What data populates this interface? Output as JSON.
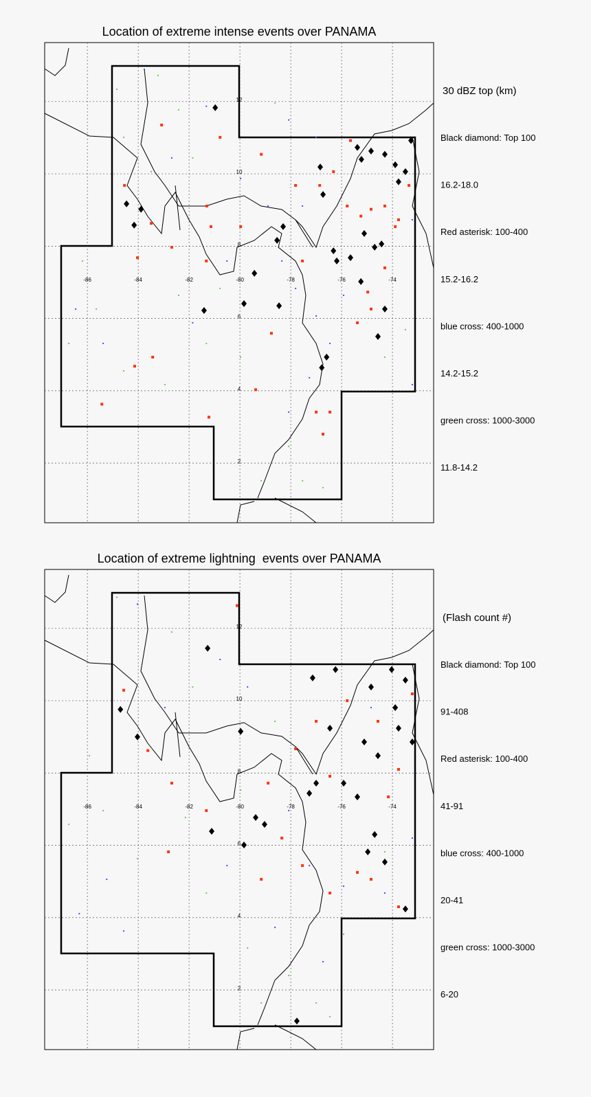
{
  "maps": [
    {
      "title": "Location of extreme intense events over PANAMA",
      "legend": [
        "30 dBZ top (km)",
        "Black diamond: Top 100",
        "16.2-18.0",
        "Red asterisk: 100-400",
        "15.2-16.2",
        "blue cross: 400-1000",
        "14.2-15.2",
        "green cross: 1000-3000",
        "11.8-14.2"
      ],
      "xlim": [
        -87.68,
        -72.38
      ],
      "ylim": [
        0.35,
        13.63
      ],
      "xticks": [
        -86,
        -84,
        -82,
        -80,
        -78,
        -76,
        -74
      ],
      "yticks": [
        2,
        4,
        6,
        8,
        10,
        12
      ],
      "layers": [
        {
          "marker": "dot",
          "color": "#66cc55",
          "points": [
            [
              -84.84,
              12.34
            ],
            [
              -83.22,
              12.72
            ],
            [
              -82.41,
              11.77
            ],
            [
              -81.86,
              10.44
            ],
            [
              -86.19,
              7.59
            ],
            [
              -85.65,
              6.26
            ],
            [
              -86.73,
              5.31
            ],
            [
              -84.57,
              4.55
            ],
            [
              -82.95,
              4.17
            ],
            [
              -81.32,
              5.31
            ],
            [
              -79.97,
              4.93
            ],
            [
              -78.08,
              2.46
            ],
            [
              -77.54,
              1.51
            ],
            [
              -76.73,
              1.32
            ],
            [
              -79.16,
              1.51
            ],
            [
              -80.78,
              6.83
            ],
            [
              -82.41,
              6.64
            ],
            [
              -74.3,
              4.93
            ],
            [
              -73.49,
              5.69
            ],
            [
              -78.62,
              11.96
            ],
            [
              -84.57,
              11.01
            ],
            [
              -83.49,
              10.06
            ]
          ]
        },
        {
          "marker": "dot",
          "color": "#3355ff",
          "points": [
            [
              -83.76,
              12.89
            ],
            [
              -81.32,
              11.87
            ],
            [
              -78.08,
              11.49
            ],
            [
              -77.0,
              11.01
            ],
            [
              -78.89,
              9.11
            ],
            [
              -78.35,
              7.59
            ],
            [
              -77.81,
              6.83
            ],
            [
              -77.0,
              6.07
            ],
            [
              -76.46,
              5.31
            ],
            [
              -77.27,
              4.36
            ],
            [
              -78.08,
              3.41
            ],
            [
              -86.46,
              6.26
            ],
            [
              -85.38,
              5.31
            ],
            [
              -81.86,
              5.88
            ],
            [
              -73.22,
              8.73
            ],
            [
              -73.22,
              4.17
            ],
            [
              -79.97,
              9.87
            ],
            [
              -80.51,
              7.59
            ],
            [
              -82.68,
              10.44
            ],
            [
              -77.54,
              9.11
            ],
            [
              -75.92,
              6.64
            ]
          ]
        },
        {
          "marker": "square",
          "color": "#ff3311",
          "points": [
            [
              -83.08,
              11.35
            ],
            [
              -81.3,
              9.11
            ],
            [
              -84.54,
              9.68
            ],
            [
              -83.49,
              8.63
            ],
            [
              -81.14,
              8.54
            ],
            [
              -79.97,
              8.54
            ],
            [
              -77.81,
              9.68
            ],
            [
              -76.86,
              9.68
            ],
            [
              -75.78,
              9.11
            ],
            [
              -75.24,
              8.83
            ],
            [
              -74.84,
              9.02
            ],
            [
              -74.3,
              9.11
            ],
            [
              -73.76,
              8.73
            ],
            [
              -74.84,
              6.26
            ],
            [
              -75.38,
              5.88
            ],
            [
              -74.97,
              6.73
            ],
            [
              -77.54,
              7.59
            ],
            [
              -78.76,
              5.59
            ],
            [
              -79.38,
              4.03
            ],
            [
              -81.22,
              3.27
            ],
            [
              -85.43,
              3.63
            ],
            [
              -84.14,
              4.68
            ],
            [
              -83.43,
              4.93
            ],
            [
              -77.0,
              3.41
            ],
            [
              -76.46,
              3.41
            ],
            [
              -76.73,
              2.8
            ],
            [
              -80.78,
              11.01
            ],
            [
              -79.16,
              10.54
            ],
            [
              -81.32,
              7.59
            ],
            [
              -84.03,
              7.68
            ],
            [
              -82.68,
              7.97
            ],
            [
              -76.32,
              10.06
            ],
            [
              -75.65,
              10.92
            ],
            [
              -73.35,
              9.68
            ],
            [
              -73.89,
              8.54
            ],
            [
              -74.3,
              7.4
            ]
          ]
        },
        {
          "marker": "diamond",
          "color": "#000000",
          "points": [
            [
              -80.97,
              11.83
            ],
            [
              -75.38,
              10.73
            ],
            [
              -75.22,
              10.4
            ],
            [
              -74.84,
              10.63
            ],
            [
              -74.3,
              10.54
            ],
            [
              -73.89,
              10.25
            ],
            [
              -73.27,
              10.92
            ],
            [
              -73.76,
              9.78
            ],
            [
              -73.49,
              10.06
            ],
            [
              -83.89,
              9.02
            ],
            [
              -84.46,
              9.17
            ],
            [
              -84.16,
              8.58
            ],
            [
              -76.84,
              10.19
            ],
            [
              -76.73,
              9.43
            ],
            [
              -78.3,
              8.54
            ],
            [
              -78.54,
              8.16
            ],
            [
              -76.19,
              7.59
            ],
            [
              -75.65,
              7.68
            ],
            [
              -75.11,
              8.35
            ],
            [
              -74.7,
              7.97
            ],
            [
              -74.43,
              8.06
            ],
            [
              -76.32,
              7.87
            ],
            [
              -75.24,
              7.02
            ],
            [
              -74.3,
              6.26
            ],
            [
              -74.57,
              5.5
            ],
            [
              -79.84,
              6.41
            ],
            [
              -81.41,
              6.22
            ],
            [
              -78.46,
              6.35
            ],
            [
              -76.59,
              4.93
            ],
            [
              -76.78,
              4.64
            ],
            [
              -79.43,
              7.25
            ]
          ]
        }
      ]
    },
    {
      "title": "Location of extreme lightning  events over PANAMA",
      "legend": [
        "(Flash count #)",
        "Black diamond: Top 100",
        "91-408",
        "Red asterisk: 100-400",
        "41-91",
        "blue cross: 400-1000",
        "20-41",
        "green cross: 1000-3000",
        "6-20"
      ],
      "xlim": [
        -87.68,
        -72.38
      ],
      "ylim": [
        0.35,
        13.63
      ],
      "xticks": [
        -86,
        -84,
        -82,
        -80,
        -78,
        -76,
        -74
      ],
      "yticks": [
        2,
        4,
        6,
        8,
        10,
        12
      ],
      "layers": [
        {
          "marker": "dot",
          "color": "#66cc55",
          "points": [
            [
              -84.84,
              12.86
            ],
            [
              -82.68,
              11.9
            ],
            [
              -81.86,
              10.38
            ],
            [
              -85.92,
              8.48
            ],
            [
              -86.73,
              6.58
            ],
            [
              -84.03,
              5.63
            ],
            [
              -81.32,
              4.68
            ],
            [
              -79.7,
              3.16
            ],
            [
              -78.08,
              2.4
            ],
            [
              -77.0,
              1.64
            ],
            [
              -76.46,
              1.26
            ],
            [
              -79.16,
              1.64
            ],
            [
              -74.3,
              5.82
            ],
            [
              -75.92,
              3.54
            ],
            [
              -79.97,
              7.53
            ],
            [
              -82.14,
              6.77
            ],
            [
              -78.62,
              9.43
            ],
            [
              -85.38,
              6.96
            ]
          ]
        },
        {
          "marker": "dot",
          "color": "#3355ff",
          "points": [
            [
              -84.03,
              12.67
            ],
            [
              -80.78,
              11.14
            ],
            [
              -82.95,
              9.81
            ],
            [
              -79.7,
              10.38
            ],
            [
              -78.08,
              6.96
            ],
            [
              -77.27,
              5.44
            ],
            [
              -75.92,
              4.87
            ],
            [
              -85.24,
              5.06
            ],
            [
              -86.32,
              4.11
            ],
            [
              -74.3,
              4.68
            ],
            [
              -73.22,
              6.2
            ],
            [
              -78.62,
              3.73
            ],
            [
              -80.51,
              5.44
            ],
            [
              -74.84,
              9.81
            ],
            [
              -76.73,
              2.78
            ],
            [
              -84.57,
              3.63
            ]
          ]
        },
        {
          "marker": "square",
          "color": "#ff3311",
          "points": [
            [
              -80.11,
              12.63
            ],
            [
              -84.57,
              10.29
            ],
            [
              -83.62,
              8.62
            ],
            [
              -82.68,
              7.72
            ],
            [
              -81.32,
              6.96
            ],
            [
              -78.89,
              7.72
            ],
            [
              -77.81,
              8.67
            ],
            [
              -77.0,
              9.43
            ],
            [
              -75.78,
              10.0
            ],
            [
              -74.57,
              9.43
            ],
            [
              -73.76,
              8.1
            ],
            [
              -74.84,
              5.06
            ],
            [
              -75.38,
              5.25
            ],
            [
              -76.46,
              4.68
            ],
            [
              -78.35,
              6.2
            ],
            [
              -77.54,
              5.44
            ],
            [
              -79.16,
              5.06
            ],
            [
              -82.81,
              5.82
            ],
            [
              -73.76,
              4.3
            ],
            [
              -76.46,
              7.91
            ],
            [
              -73.22,
              10.19
            ],
            [
              -74.16,
              7.34
            ]
          ]
        },
        {
          "marker": "diamond",
          "color": "#000000",
          "points": [
            [
              -81.27,
              11.45
            ],
            [
              -77.14,
              10.63
            ],
            [
              -76.24,
              10.86
            ],
            [
              -74.84,
              10.38
            ],
            [
              -74.03,
              10.86
            ],
            [
              -73.49,
              10.57
            ],
            [
              -73.89,
              9.81
            ],
            [
              -73.76,
              9.24
            ],
            [
              -73.22,
              8.86
            ],
            [
              -75.11,
              8.86
            ],
            [
              -74.57,
              8.48
            ],
            [
              -75.92,
              7.72
            ],
            [
              -75.38,
              7.34
            ],
            [
              -74.7,
              6.3
            ],
            [
              -74.97,
              5.82
            ],
            [
              -74.3,
              5.54
            ],
            [
              -79.38,
              6.77
            ],
            [
              -79.03,
              6.58
            ],
            [
              -81.11,
              6.39
            ],
            [
              -79.84,
              6.01
            ],
            [
              -77.0,
              7.72
            ],
            [
              -77.27,
              7.44
            ],
            [
              -84.7,
              9.76
            ],
            [
              -84.03,
              9.0
            ],
            [
              -79.97,
              9.15
            ],
            [
              -77.76,
              1.14
            ],
            [
              -73.49,
              4.24
            ],
            [
              -76.46,
              9.24
            ]
          ]
        }
      ]
    }
  ]
}
